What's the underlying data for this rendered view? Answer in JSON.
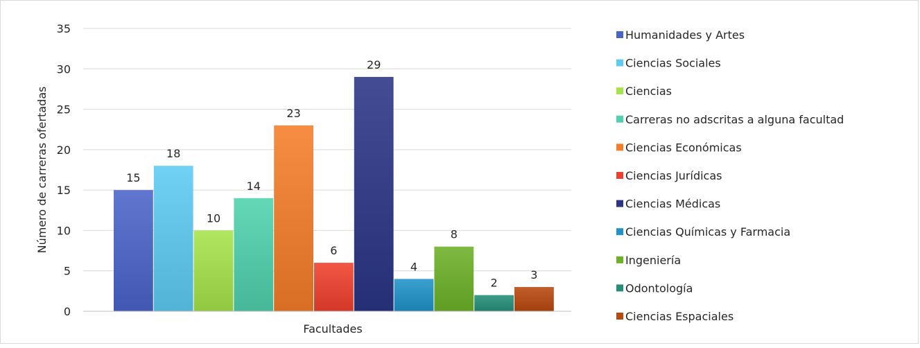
{
  "chart_data": {
    "type": "bar",
    "title": "",
    "xlabel": "Facultades",
    "ylabel": "Número de carreras ofertadas",
    "ylim": [
      0,
      35
    ],
    "yticks": [
      0,
      5,
      10,
      15,
      20,
      25,
      30,
      35
    ],
    "grid": true,
    "legend_position": "right",
    "series": [
      {
        "name": "Humanidades y Artes",
        "value": 15,
        "color": "#4a63c9"
      },
      {
        "name": "Ciencias Sociales",
        "value": 18,
        "color": "#5ecbf3"
      },
      {
        "name": "Ciencias",
        "value": 10,
        "color": "#a6e34a"
      },
      {
        "name": "Carreras no adscritas a alguna facultad",
        "value": 14,
        "color": "#4fd1ad"
      },
      {
        "name": "Ciencias Económicas",
        "value": 23,
        "color": "#f57d28"
      },
      {
        "name": "Ciencias Jurídicas",
        "value": 6,
        "color": "#f03f2c"
      },
      {
        "name": "Ciencias Médicas",
        "value": 29,
        "color": "#2a3585"
      },
      {
        "name": "Ciencias Químicas y Farmacia",
        "value": 4,
        "color": "#1f93c9"
      },
      {
        "name": "Ingeniería",
        "value": 8,
        "color": "#6cb128"
      },
      {
        "name": "Odontología",
        "value": 2,
        "color": "#248f78"
      },
      {
        "name": "Ciencias Espaciales",
        "value": 3,
        "color": "#b9480f"
      }
    ]
  }
}
